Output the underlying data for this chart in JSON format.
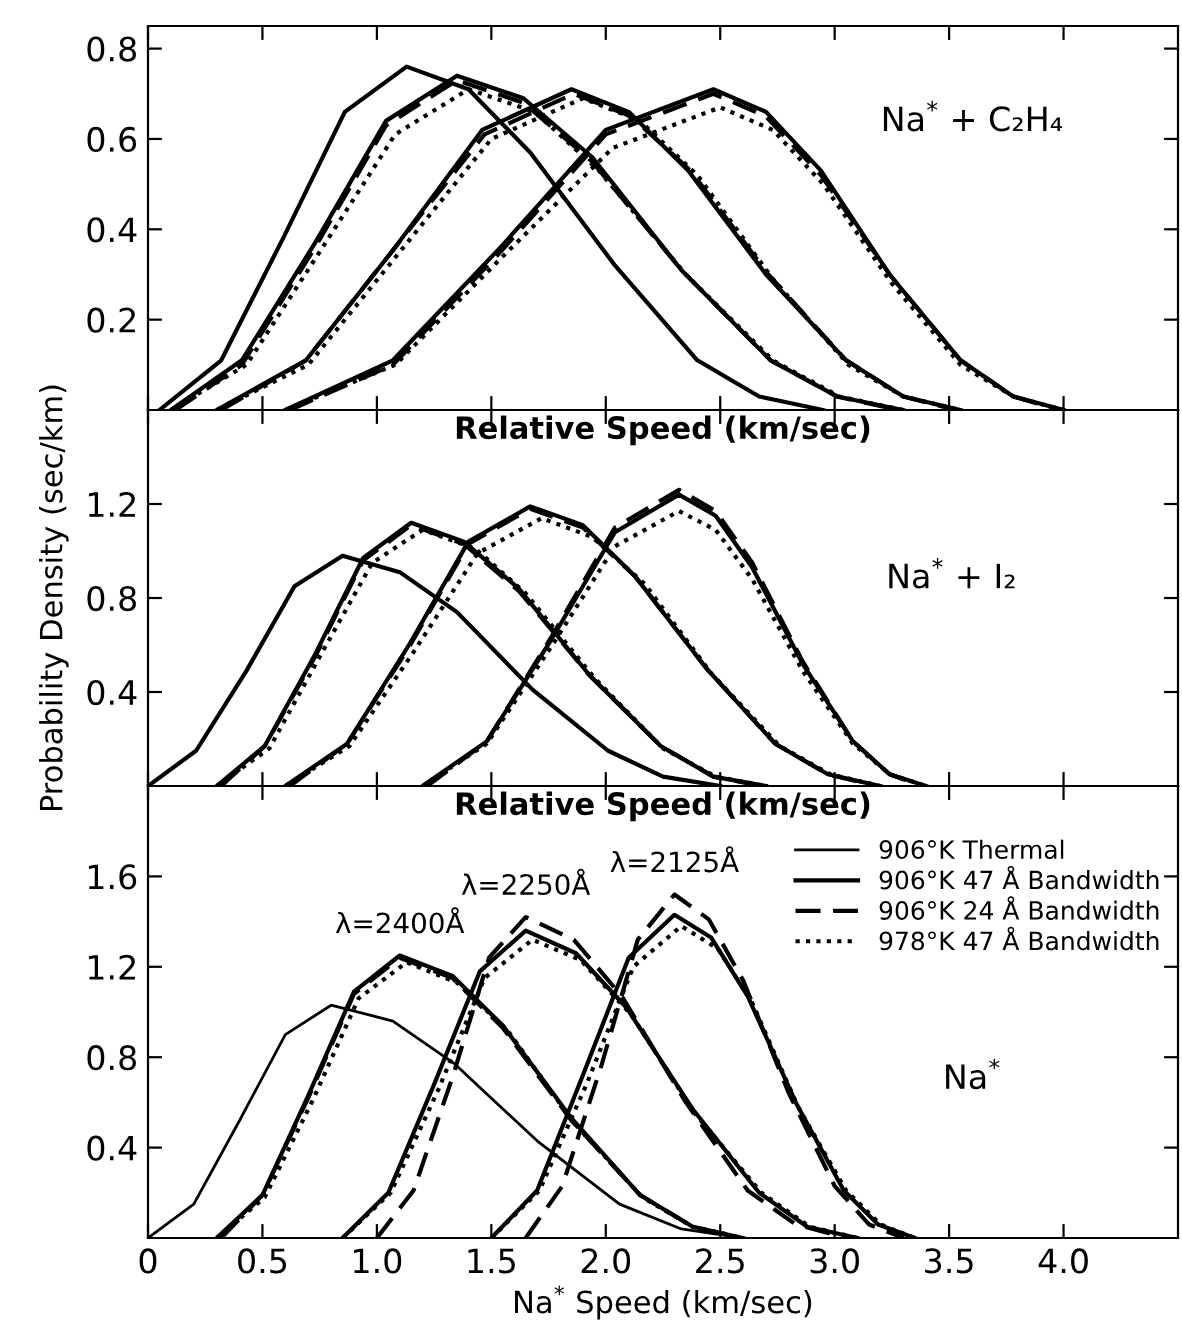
{
  "chart_data": [
    {
      "type": "line",
      "xlabel": "Relative Speed (km/sec)",
      "xlim": [
        0,
        4.5
      ],
      "ylim": [
        0,
        0.85
      ],
      "xticks": [
        0,
        0.5,
        1,
        1.5,
        2,
        2.5,
        3,
        3.5,
        4
      ],
      "yticks": [
        0.2,
        0.4,
        0.6,
        0.8
      ],
      "tick_labels": "y",
      "annotations": [
        "Na$^{*}$ + C₂H₄"
      ],
      "series": [
        {
          "color": "#000000",
          "line_style": "solid",
          "x": [
            0.05,
            0.32,
            0.59,
            0.86,
            1.13,
            1.4,
            1.67,
            2.04,
            2.4,
            2.67,
            2.95
          ],
          "values": [
            0,
            0.11,
            0.38,
            0.66,
            0.76,
            0.71,
            0.57,
            0.32,
            0.11,
            0.03,
            0
          ]
        },
        {
          "color": "#000000",
          "line_style": "solid",
          "x": [
            0.1,
            0.41,
            0.73,
            1.04,
            1.35,
            1.64,
            1.94,
            2.33,
            2.72,
            3.01,
            3.3
          ],
          "values": [
            0,
            0.11,
            0.37,
            0.64,
            0.74,
            0.69,
            0.56,
            0.31,
            0.11,
            0.03,
            0
          ]
        },
        {
          "color": "#000000",
          "line_style": "dashed",
          "x": [
            0.12,
            0.41,
            0.73,
            1.04,
            1.35,
            1.64,
            1.94,
            2.33,
            2.72,
            3.01,
            3.28
          ],
          "values": [
            0,
            0.1,
            0.36,
            0.63,
            0.73,
            0.68,
            0.55,
            0.31,
            0.11,
            0.03,
            0
          ]
        },
        {
          "color": "#000000",
          "line_style": "dotted",
          "x": [
            0.1,
            0.43,
            0.75,
            1.08,
            1.4,
            1.69,
            1.97,
            2.35,
            2.73,
            3.02,
            3.3
          ],
          "values": [
            0,
            0.1,
            0.35,
            0.61,
            0.71,
            0.66,
            0.53,
            0.3,
            0.11,
            0.03,
            0
          ]
        },
        {
          "color": "#000000",
          "line_style": "solid",
          "x": [
            0.3,
            0.69,
            1.08,
            1.46,
            1.85,
            2.1,
            2.36,
            2.7,
            3.05,
            3.3,
            3.55
          ],
          "values": [
            0,
            0.11,
            0.36,
            0.62,
            0.71,
            0.66,
            0.53,
            0.3,
            0.11,
            0.03,
            0
          ]
        },
        {
          "color": "#000000",
          "line_style": "dashed",
          "x": [
            0.32,
            0.69,
            1.08,
            1.47,
            1.86,
            2.11,
            2.37,
            2.71,
            3.05,
            3.3,
            3.53
          ],
          "values": [
            0,
            0.11,
            0.36,
            0.61,
            0.7,
            0.65,
            0.53,
            0.3,
            0.11,
            0.03,
            0
          ]
        },
        {
          "color": "#000000",
          "line_style": "dotted",
          "x": [
            0.3,
            0.7,
            1.1,
            1.5,
            1.9,
            2.15,
            2.4,
            2.73,
            3.06,
            3.3,
            3.55
          ],
          "values": [
            0,
            0.1,
            0.35,
            0.6,
            0.69,
            0.64,
            0.52,
            0.29,
            0.1,
            0.03,
            0
          ]
        },
        {
          "color": "#000000",
          "line_style": "solid",
          "x": [
            0.6,
            1.07,
            1.54,
            2.0,
            2.47,
            2.7,
            2.94,
            3.24,
            3.55,
            3.78,
            4.0
          ],
          "values": [
            0,
            0.11,
            0.36,
            0.62,
            0.71,
            0.66,
            0.53,
            0.3,
            0.11,
            0.03,
            0
          ]
        },
        {
          "color": "#000000",
          "line_style": "dashed",
          "x": [
            0.62,
            1.07,
            1.54,
            2.0,
            2.47,
            2.7,
            2.94,
            3.24,
            3.55,
            3.78,
            3.98
          ],
          "values": [
            0,
            0.1,
            0.35,
            0.61,
            0.7,
            0.65,
            0.52,
            0.3,
            0.11,
            0.03,
            0
          ]
        },
        {
          "color": "#000000",
          "line_style": "dotted",
          "x": [
            0.6,
            1.08,
            1.55,
            2.03,
            2.5,
            2.73,
            2.95,
            3.25,
            3.55,
            3.78,
            4.0
          ],
          "values": [
            0,
            0.1,
            0.34,
            0.58,
            0.67,
            0.62,
            0.5,
            0.28,
            0.1,
            0.03,
            0
          ]
        }
      ]
    },
    {
      "type": "line",
      "xlabel": "Relative Speed (km/sec)",
      "ylabel": "Probability Density (sec/km)",
      "xlim": [
        0,
        4.5
      ],
      "ylim": [
        0,
        1.6
      ],
      "xticks": [
        0,
        0.5,
        1,
        1.5,
        2,
        2.5,
        3,
        3.5,
        4
      ],
      "yticks": [
        0.4,
        0.8,
        1.2
      ],
      "tick_labels": "y",
      "annotations": [
        "Na$^{*}$ + I₂"
      ],
      "series": [
        {
          "color": "#000000",
          "line_style": "solid",
          "x": [
            0,
            0.21,
            0.43,
            0.64,
            0.85,
            1.1,
            1.35,
            1.68,
            2.01,
            2.25,
            2.5
          ],
          "values": [
            0,
            0.15,
            0.49,
            0.85,
            0.98,
            0.91,
            0.74,
            0.41,
            0.15,
            0.04,
            0
          ]
        },
        {
          "color": "#000000",
          "line_style": "solid",
          "x": [
            0.3,
            0.51,
            0.73,
            0.94,
            1.15,
            1.38,
            1.62,
            1.93,
            2.24,
            2.47,
            2.7
          ],
          "values": [
            0,
            0.17,
            0.56,
            0.97,
            1.12,
            1.04,
            0.84,
            0.47,
            0.17,
            0.04,
            0
          ]
        },
        {
          "color": "#000000",
          "line_style": "dashed",
          "x": [
            0.32,
            0.51,
            0.73,
            0.94,
            1.15,
            1.38,
            1.62,
            1.93,
            2.24,
            2.47,
            2.68
          ],
          "values": [
            0,
            0.17,
            0.55,
            0.96,
            1.11,
            1.03,
            0.83,
            0.47,
            0.17,
            0.04,
            0
          ]
        },
        {
          "color": "#000000",
          "line_style": "dotted",
          "x": [
            0.3,
            0.53,
            0.75,
            0.98,
            1.2,
            1.43,
            1.65,
            1.95,
            2.25,
            2.48,
            2.7
          ],
          "values": [
            0,
            0.16,
            0.55,
            0.95,
            1.09,
            1.01,
            0.82,
            0.46,
            0.16,
            0.04,
            0
          ]
        },
        {
          "color": "#000000",
          "line_style": "solid",
          "x": [
            0.6,
            0.87,
            1.14,
            1.4,
            1.67,
            1.9,
            2.13,
            2.44,
            2.74,
            2.97,
            3.2
          ],
          "values": [
            0,
            0.18,
            0.6,
            1.04,
            1.19,
            1.11,
            0.89,
            0.5,
            0.18,
            0.05,
            0
          ]
        },
        {
          "color": "#000000",
          "line_style": "dashed",
          "x": [
            0.62,
            0.87,
            1.14,
            1.4,
            1.67,
            1.9,
            2.13,
            2.44,
            2.74,
            2.97,
            3.18
          ],
          "values": [
            0,
            0.18,
            0.59,
            1.03,
            1.18,
            1.1,
            0.89,
            0.5,
            0.18,
            0.05,
            0
          ]
        },
        {
          "color": "#000000",
          "line_style": "dotted",
          "x": [
            0.6,
            0.88,
            1.16,
            1.44,
            1.72,
            1.94,
            2.17,
            2.46,
            2.76,
            2.98,
            3.2
          ],
          "values": [
            0,
            0.17,
            0.57,
            0.99,
            1.14,
            1.06,
            0.86,
            0.48,
            0.17,
            0.05,
            0
          ]
        },
        {
          "color": "#000000",
          "line_style": "solid",
          "x": [
            1.2,
            1.48,
            1.76,
            2.04,
            2.32,
            2.48,
            2.64,
            2.86,
            3.08,
            3.24,
            3.4
          ],
          "values": [
            0,
            0.19,
            0.62,
            1.08,
            1.24,
            1.15,
            0.93,
            0.52,
            0.19,
            0.05,
            0
          ]
        },
        {
          "color": "#000000",
          "line_style": "dashed",
          "x": [
            1.22,
            1.48,
            1.76,
            2.04,
            2.32,
            2.48,
            2.64,
            2.86,
            3.08,
            3.24,
            3.38
          ],
          "values": [
            0,
            0.19,
            0.63,
            1.1,
            1.26,
            1.17,
            0.95,
            0.53,
            0.19,
            0.05,
            0
          ]
        },
        {
          "color": "#000000",
          "line_style": "dotted",
          "x": [
            1.2,
            1.48,
            1.76,
            2.04,
            2.32,
            2.48,
            2.64,
            2.86,
            3.08,
            3.24,
            3.4
          ],
          "values": [
            0,
            0.18,
            0.59,
            1.02,
            1.17,
            1.09,
            0.88,
            0.49,
            0.18,
            0.05,
            0
          ]
        }
      ]
    },
    {
      "type": "line",
      "xlabel": "Na$^{*}$ Speed (km/sec)",
      "xlim": [
        0,
        4.5
      ],
      "ylim": [
        0,
        2.0
      ],
      "xticks": [
        0,
        0.5,
        {
          "value": 1,
          "label": "1.0"
        },
        1.5,
        {
          "value": 2,
          "label": "2.0"
        },
        2.5,
        {
          "value": 3,
          "label": "3.0"
        },
        3.5,
        {
          "value": 4,
          "label": "4.0"
        }
      ],
      "yticks": [
        0.4,
        0.8,
        1.2,
        1.6
      ],
      "legend": "top right",
      "annotations": [
        {
          "text": "λ=2400Å",
          "x": 1.1,
          "y": 1.25
        },
        {
          "text": "λ=2250Å",
          "x": 1.65,
          "y": 1.42
        },
        {
          "text": "λ=2125Å",
          "x": 2.3,
          "y": 1.52
        },
        "Na$^{*}$"
      ],
      "series": [
        {
          "name": "906°K Thermal",
          "color": "#000000",
          "line_style": "solid",
          "x": [
            0,
            0.2,
            0.4,
            0.6,
            0.8,
            1.07,
            1.34,
            1.7,
            2.06,
            2.33,
            2.6
          ],
          "values": [
            0,
            0.15,
            0.52,
            0.9,
            1.03,
            0.96,
            0.77,
            0.43,
            0.15,
            0.04,
            0
          ]
        },
        {
          "name": "906°K 47 Å Bandwidth",
          "color": "#000000",
          "line_style": "solid",
          "x": [
            0.3,
            0.5,
            0.7,
            0.9,
            1.1,
            1.33,
            1.55,
            1.85,
            2.15,
            2.38,
            2.6
          ],
          "values": [
            0,
            0.19,
            0.63,
            1.09,
            1.25,
            1.16,
            0.94,
            0.53,
            0.19,
            0.05,
            0
          ]
        },
        {
          "name": "906°K 24 Å Bandwidth",
          "color": "#000000",
          "line_style": "dashed",
          "x": [
            0.32,
            0.5,
            0.7,
            0.9,
            1.1,
            1.33,
            1.55,
            1.85,
            2.15,
            2.38,
            2.58
          ],
          "values": [
            0,
            0.19,
            0.62,
            1.08,
            1.24,
            1.15,
            0.93,
            0.52,
            0.19,
            0.05,
            0
          ]
        },
        {
          "name": "978°K 47 Å Bandwidth",
          "color": "#000000",
          "line_style": "dotted",
          "x": [
            0.3,
            0.51,
            0.72,
            0.92,
            1.13,
            1.35,
            1.57,
            1.86,
            2.16,
            2.38,
            2.6
          ],
          "values": [
            0,
            0.18,
            0.61,
            1.06,
            1.22,
            1.13,
            0.92,
            0.51,
            0.18,
            0.05,
            0
          ]
        },
        {
          "color": "#000000",
          "line_style": "solid",
          "x": [
            0.85,
            1.05,
            1.25,
            1.45,
            1.65,
            1.87,
            2.09,
            2.38,
            2.67,
            2.88,
            3.1
          ],
          "values": [
            0,
            0.2,
            0.68,
            1.18,
            1.36,
            1.26,
            1.02,
            0.57,
            0.2,
            0.05,
            0
          ]
        },
        {
          "color": "#000000",
          "line_style": "dashed",
          "x": [
            1.0,
            1.16,
            1.33,
            1.49,
            1.65,
            1.86,
            2.07,
            2.35,
            2.62,
            2.83,
            3.05
          ],
          "values": [
            0,
            0.21,
            0.71,
            1.24,
            1.42,
            1.32,
            1.07,
            0.6,
            0.21,
            0.06,
            0
          ]
        },
        {
          "color": "#000000",
          "line_style": "dotted",
          "x": [
            0.85,
            1.06,
            1.27,
            1.47,
            1.68,
            1.89,
            2.11,
            2.39,
            2.68,
            2.89,
            3.1
          ],
          "values": [
            0,
            0.2,
            0.66,
            1.15,
            1.32,
            1.23,
            0.99,
            0.55,
            0.2,
            0.05,
            0
          ]
        },
        {
          "color": "#000000",
          "line_style": "solid",
          "x": [
            1.5,
            1.7,
            1.9,
            2.1,
            2.3,
            2.46,
            2.62,
            2.83,
            3.04,
            3.19,
            3.35
          ],
          "values": [
            0,
            0.21,
            0.72,
            1.24,
            1.43,
            1.33,
            1.07,
            0.6,
            0.21,
            0.06,
            0
          ]
        },
        {
          "color": "#000000",
          "line_style": "dashed",
          "x": [
            1.65,
            1.81,
            1.98,
            2.14,
            2.3,
            2.45,
            2.6,
            2.8,
            3.0,
            3.15,
            3.3
          ],
          "values": [
            0,
            0.23,
            0.76,
            1.32,
            1.52,
            1.41,
            1.14,
            0.64,
            0.23,
            0.06,
            0
          ]
        },
        {
          "color": "#000000",
          "line_style": "dotted",
          "x": [
            1.5,
            1.71,
            1.92,
            2.12,
            2.33,
            2.49,
            2.64,
            2.84,
            3.05,
            3.2,
            3.35
          ],
          "values": [
            0,
            0.21,
            0.69,
            1.2,
            1.38,
            1.28,
            1.04,
            0.58,
            0.21,
            0.06,
            0
          ]
        }
      ]
    }
  ]
}
